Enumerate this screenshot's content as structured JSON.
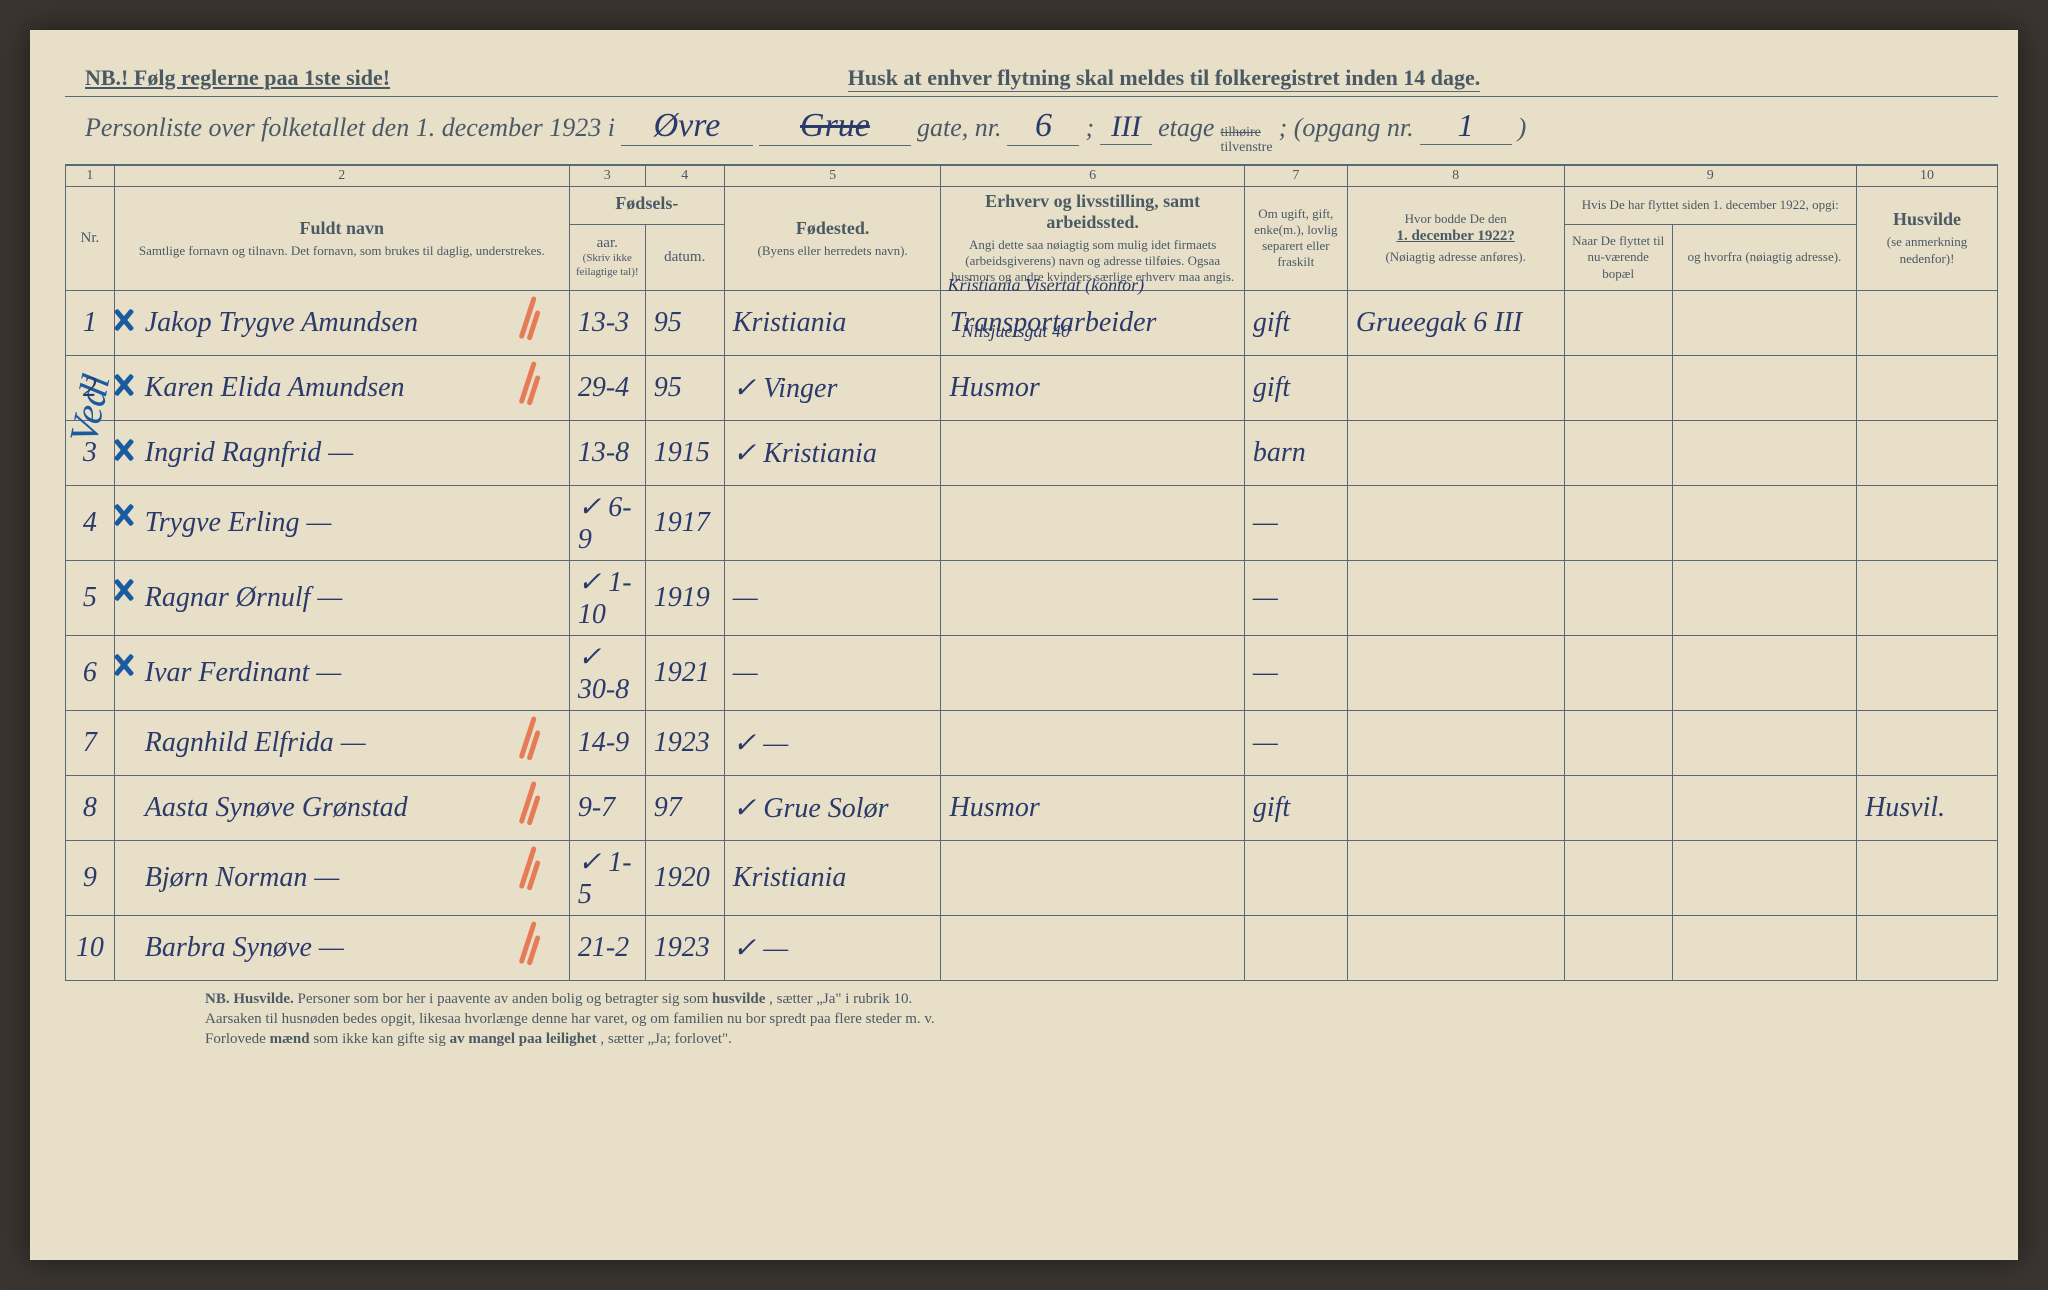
{
  "colors": {
    "paper": "#e8dfc8",
    "printInk": "#4a5a65",
    "handInk": "#2a3a6a",
    "bluePencil": "#1a5aa0",
    "redPencil": "#e65a32",
    "pageEdge": "#3a3530"
  },
  "header": {
    "nb": "NB.! Følg reglerne paa 1ste side!",
    "reminder": "Husk at enhver flytning skal meldes til folkeregistret inden 14 dage.",
    "title_prefix": "Personliste over folketallet den 1. december 1923 i",
    "street_hw": "Øvre",
    "street2_hw": "Grue",
    "gate_label": "gate, nr.",
    "gate_nr": "6",
    "semi": ";",
    "etage_hw": "III",
    "etage_label": "etage",
    "side_top": "tilhøire",
    "side_bot": "tilvenstre",
    "opgang_label": "; (opgang nr.",
    "opgang_nr": "1",
    "close": ")"
  },
  "sideNote": "Vedl",
  "columns": {
    "c1": "1",
    "c2": "2",
    "c3": "3",
    "c4": "4",
    "c5": "5",
    "c6": "6",
    "c7": "7",
    "c8": "8",
    "c9": "9",
    "c10": "10",
    "nr": "Nr.",
    "navn_main": "Fuldt navn",
    "navn_sub": "Samtlige fornavn og tilnavn.  Det fornavn, som brukes til daglig, understrekes.",
    "fodsels": "Fødsels-",
    "aar": "aar.",
    "datum": "datum.",
    "aar_sub": "(Skriv ikke feilagtige tal)!",
    "fodested_main": "Fødested.",
    "fodested_sub": "(Byens eller herredets navn).",
    "erhverv_main": "Erhverv og livsstilling, samt arbeidssted.",
    "erhverv_sub": "Angi dette saa nøiagtig som mulig idet firmaets (arbeidsgiverens) navn og adresse tilføies. Ogsaa husmors og andre kvinders særlige erhverv maa angis.",
    "civil": "Om ugift, gift, enke(m.), lovlig separert eller fraskilt",
    "hvor_main": "Hvor bodde De den",
    "hvor_date": "1. december 1922?",
    "hvor_sub": "(Nøiagtig adresse anføres).",
    "flyttet_top": "Hvis De har flyttet siden 1. december 1922, opgi:",
    "flyttet_a": "Naar De flyttet til nu-værende bopæl",
    "flyttet_b": "og hvorfra (nøiagtig adresse).",
    "husvilde_main": "Husvilde",
    "husvilde_sub": "(se anmerkning nedenfor)!"
  },
  "rows": [
    {
      "nr": "1",
      "name": "Jakop Trygve Amundsen",
      "day": "13-3",
      "year": "95",
      "birthplace": "Kristiania",
      "occ": "Transportarbeider",
      "occ_over": "Kristiania Visertat (kontor)",
      "occ_under": "Nilsjuelsgat 40",
      "civil": "gift",
      "addr1922": "Grueegak 6 III",
      "husvilde": "",
      "red": true,
      "blue": true
    },
    {
      "nr": "2",
      "name": "Karen Elida Amundsen",
      "day": "29-4",
      "year": "95",
      "birthplace": "✓ Vinger",
      "occ": "Husmor",
      "civil": "gift",
      "addr1922": "",
      "husvilde": "",
      "red": true,
      "blue": true
    },
    {
      "nr": "3",
      "name": "Ingrid Ragnfrid   —",
      "day": "13-8",
      "year": "1915",
      "birthplace": "✓ Kristiania",
      "occ": "",
      "civil": "barn",
      "addr1922": "",
      "husvilde": "",
      "red": false,
      "blue": true
    },
    {
      "nr": "4",
      "name": "Trygve Erling   —",
      "day": "✓ 6-9",
      "year": "1917",
      "birthplace": "",
      "occ": "",
      "civil": "—",
      "addr1922": "",
      "husvilde": "",
      "red": false,
      "blue": true
    },
    {
      "nr": "5",
      "name": "Ragnar Ørnulf   —",
      "day": "✓ 1-10",
      "year": "1919",
      "birthplace": "—",
      "occ": "",
      "civil": "—",
      "addr1922": "",
      "husvilde": "",
      "red": false,
      "blue": true
    },
    {
      "nr": "6",
      "name": "Ivar Ferdinant   —",
      "day": "✓ 30-8",
      "year": "1921",
      "birthplace": "—",
      "occ": "",
      "civil": "—",
      "addr1922": "",
      "husvilde": "",
      "red": false,
      "blue": true
    },
    {
      "nr": "7",
      "name": "Ragnhild Elfrida   —",
      "day": "14-9",
      "year": "1923",
      "birthplace": "✓  —",
      "occ": "",
      "civil": "—",
      "addr1922": "",
      "husvilde": "",
      "red": true,
      "blue": false
    },
    {
      "nr": "8",
      "name": "Aasta Synøve Grønstad",
      "day": "9-7",
      "year": "97",
      "birthplace": "✓ Grue Solør",
      "occ": "Husmor",
      "civil": "gift",
      "addr1922": "",
      "husvilde": "Husvil.",
      "red": true,
      "blue": false
    },
    {
      "nr": "9",
      "name": "Bjørn Norman   —",
      "day": "✓ 1-5",
      "year": "1920",
      "birthplace": "Kristiania",
      "occ": "",
      "civil": "",
      "addr1922": "",
      "husvilde": "",
      "red": true,
      "blue": false
    },
    {
      "nr": "10",
      "name": "Barbra Synøve   —",
      "day": "21-2",
      "year": "1923",
      "birthplace": "✓   —",
      "occ": "",
      "civil": "",
      "addr1922": "",
      "husvilde": "",
      "red": true,
      "blue": false
    }
  ],
  "footer": {
    "l1a": "NB. Husvilde.",
    "l1b": " Personer som bor her i paavente av anden bolig og betragter sig som ",
    "l1c": "husvilde",
    "l1d": ", sætter „Ja\" i rubrik 10.",
    "l2": "Aarsaken til husnøden bedes opgit, likesaa hvorlænge denne har varet, og om familien nu bor spredt paa flere steder m. v.",
    "l3a": "Forlovede ",
    "l3b": "mænd",
    "l3c": " som ikke kan gifte sig ",
    "l3d": "av mangel paa leilighet",
    "l3e": ", sætter „Ja; forlovet\"."
  }
}
